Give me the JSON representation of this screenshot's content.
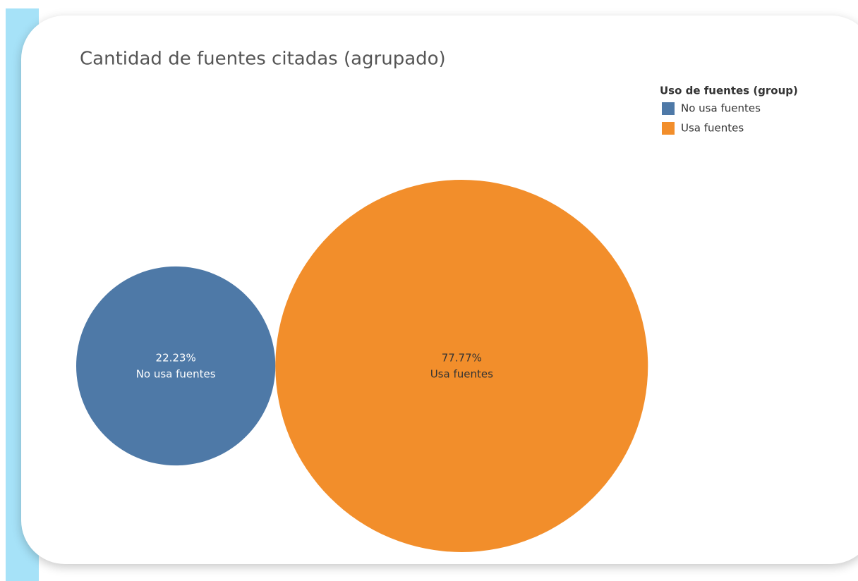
{
  "chart_data": {
    "type": "bubble",
    "title": "Cantidad de fuentes citadas (agrupado)",
    "categories": [
      "No usa fuentes",
      "Usa fuentes"
    ],
    "values": [
      22.23,
      77.77
    ],
    "value_labels": [
      "22.23%",
      "77.77%"
    ],
    "colors": [
      "#4e79a7",
      "#f28e2b"
    ],
    "legend": {
      "title": "Uso de fuentes (group)",
      "position": "top-right"
    }
  }
}
